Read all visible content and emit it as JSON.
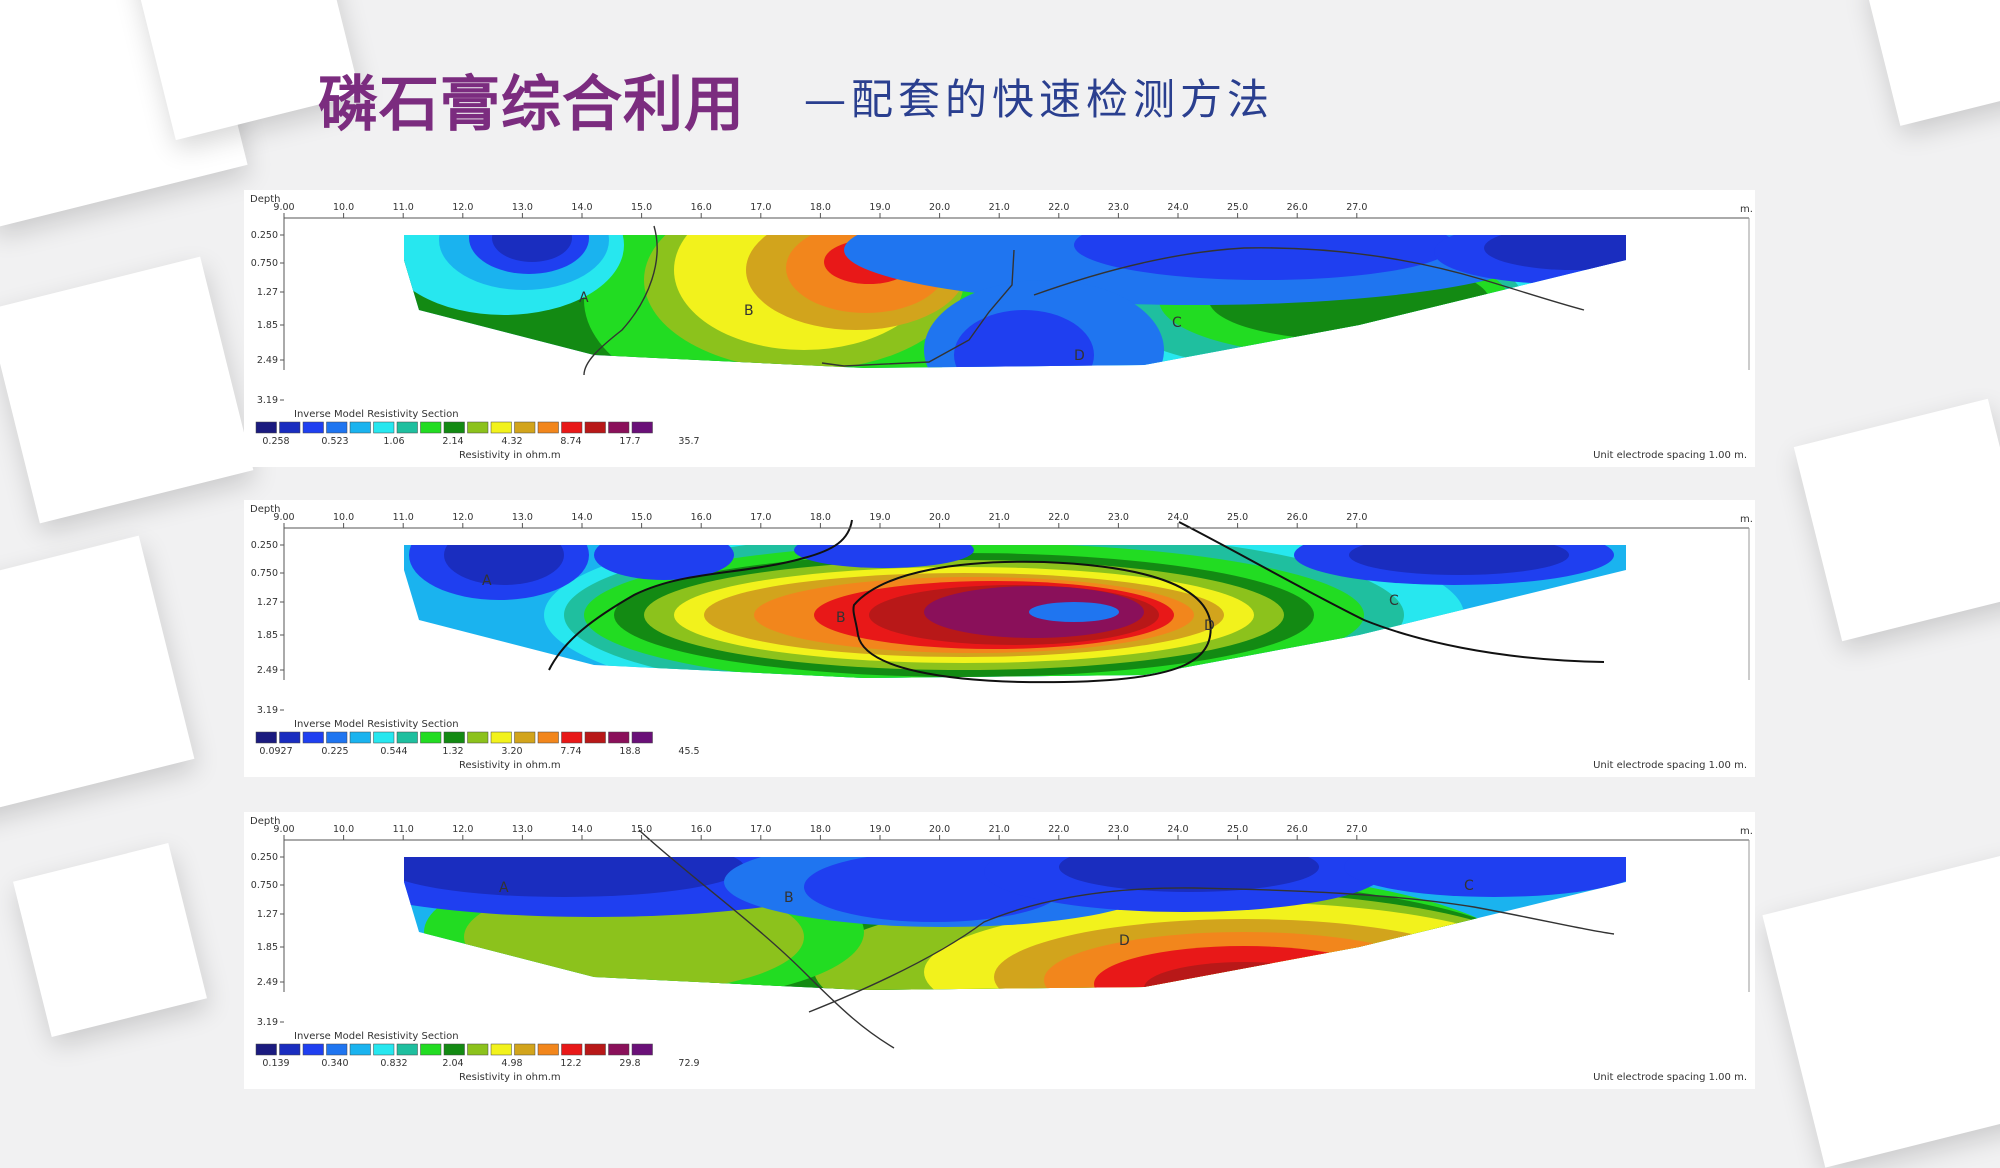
{
  "page": {
    "title": "磷石膏综合利用",
    "subtitle": "—配套的快速检测方法"
  },
  "chart_data": [
    {
      "type": "heatmap",
      "title": "Inverse Model Resistivity Section",
      "depth_label": "Depth",
      "unit": "m.",
      "x_ticks": [
        "9.00",
        "10.0",
        "11.0",
        "12.0",
        "13.0",
        "14.0",
        "15.0",
        "16.0",
        "17.0",
        "18.0",
        "19.0",
        "20.0",
        "21.0",
        "22.0",
        "23.0",
        "24.0",
        "25.0",
        "26.0",
        "27.0"
      ],
      "depth_ticks": [
        "0.250",
        "0.750",
        "1.27",
        "1.85",
        "2.49",
        "3.19"
      ],
      "legend_values": [
        "0.258",
        "0.523",
        "1.06",
        "2.14",
        "4.32",
        "8.74",
        "17.7",
        "35.7"
      ],
      "legend_label": "Resistivity in ohm.m",
      "spacing_note": "Unit electrode spacing 1.00 m.",
      "anomaly_labels": [
        "A",
        "B",
        "C",
        "D"
      ]
    },
    {
      "type": "heatmap",
      "title": "Inverse Model Resistivity Section",
      "depth_label": "Depth",
      "unit": "m.",
      "x_ticks": [
        "9.00",
        "10.0",
        "11.0",
        "12.0",
        "13.0",
        "14.0",
        "15.0",
        "16.0",
        "17.0",
        "18.0",
        "19.0",
        "20.0",
        "21.0",
        "22.0",
        "23.0",
        "24.0",
        "25.0",
        "26.0",
        "27.0"
      ],
      "depth_ticks": [
        "0.250",
        "0.750",
        "1.27",
        "1.85",
        "2.49",
        "3.19"
      ],
      "legend_values": [
        "0.0927",
        "0.225",
        "0.544",
        "1.32",
        "3.20",
        "7.74",
        "18.8",
        "45.5"
      ],
      "legend_label": "Resistivity in ohm.m",
      "spacing_note": "Unit electrode spacing 1.00 m.",
      "anomaly_labels": [
        "A",
        "B",
        "C",
        "D"
      ]
    },
    {
      "type": "heatmap",
      "title": "Inverse Model Resistivity Section",
      "depth_label": "Depth",
      "unit": "m.",
      "x_ticks": [
        "9.00",
        "10.0",
        "11.0",
        "12.0",
        "13.0",
        "14.0",
        "15.0",
        "16.0",
        "17.0",
        "18.0",
        "19.0",
        "20.0",
        "21.0",
        "22.0",
        "23.0",
        "24.0",
        "25.0",
        "26.0",
        "27.0"
      ],
      "depth_ticks": [
        "0.250",
        "0.750",
        "1.27",
        "1.85",
        "2.49",
        "3.19"
      ],
      "legend_values": [
        "0.139",
        "0.340",
        "0.832",
        "2.04",
        "4.98",
        "12.2",
        "29.8",
        "72.9"
      ],
      "legend_label": "Resistivity in ohm.m",
      "spacing_note": "Unit electrode spacing 1.00 m.",
      "anomaly_labels": [
        "A",
        "B",
        "C",
        "D"
      ]
    }
  ],
  "palette": [
    "#1b1b7f",
    "#1a2dbf",
    "#1f3ff0",
    "#1f75f0",
    "#1ab3ef",
    "#27e7ef",
    "#1fbf9f",
    "#22dc22",
    "#138a13",
    "#8cc21c",
    "#f2f21c",
    "#d2a41c",
    "#f2861c",
    "#e81818",
    "#b81818",
    "#8a105a",
    "#6a1078"
  ]
}
